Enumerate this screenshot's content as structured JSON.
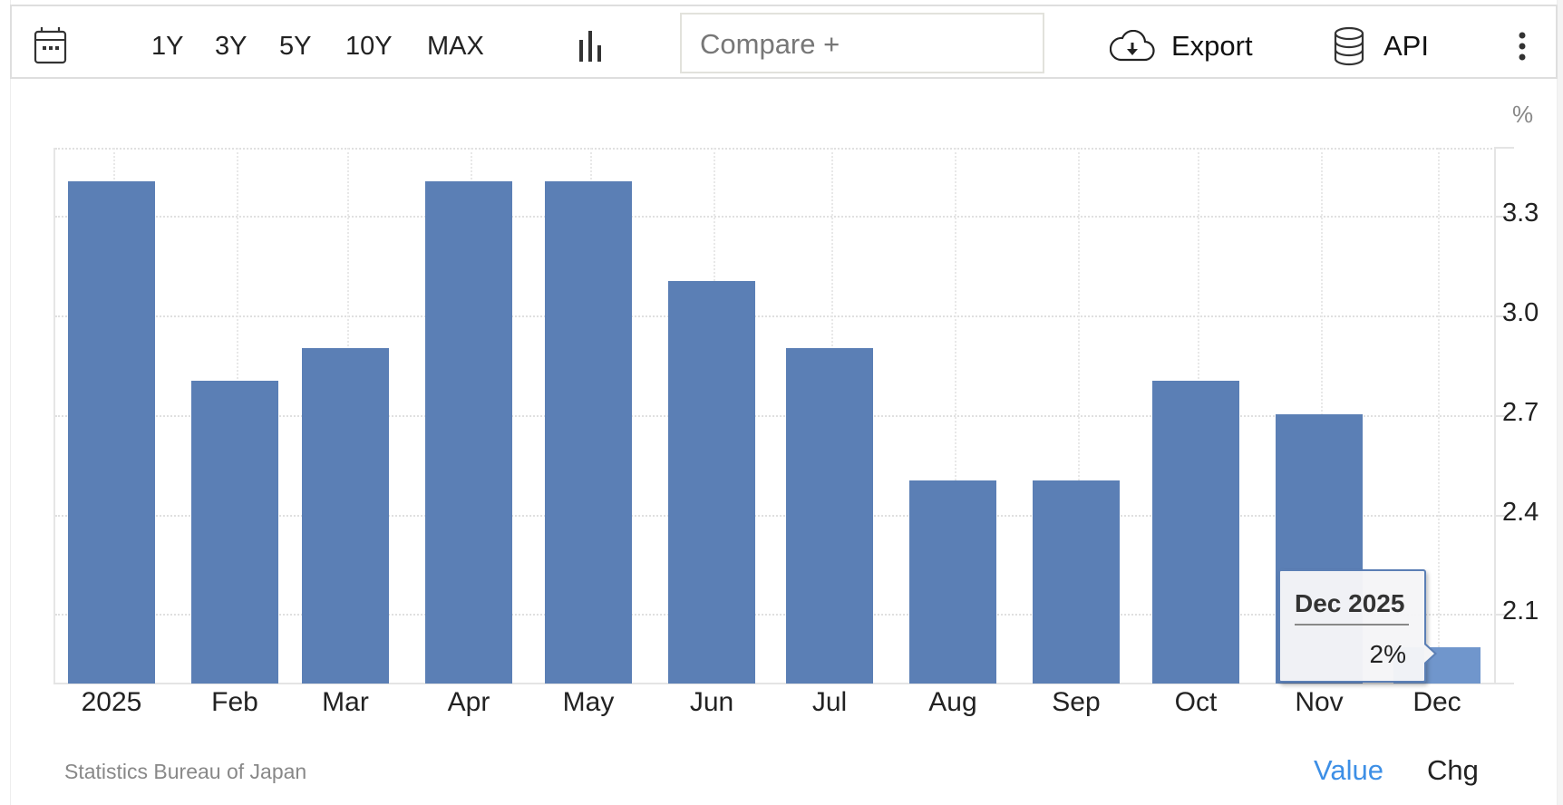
{
  "toolbar": {
    "icons": {
      "calendar": "calendar-icon",
      "chart_type": "bar-chart-icon",
      "export": "cloud-download-icon",
      "api": "database-icon",
      "more": "more-vertical-icon"
    },
    "ranges": [
      {
        "label": "1Y"
      },
      {
        "label": "3Y"
      },
      {
        "label": "5Y"
      },
      {
        "label": "10Y"
      },
      {
        "label": "MAX"
      }
    ],
    "compare_placeholder": "Compare +",
    "export_label": "Export",
    "api_label": "API"
  },
  "chart": {
    "unit": "%",
    "bar_color": "#5b7fb5",
    "active_bar_color": "#7096cc",
    "tooltip": {
      "title": "Dec 2025",
      "value": "2%"
    }
  },
  "footer": {
    "source": "Statistics Bureau of Japan",
    "value_label": "Value",
    "chg_label": "Chg",
    "active_color": "#3d8fe6"
  },
  "chart_data": {
    "type": "bar",
    "title": "",
    "xlabel": "",
    "ylabel": "%",
    "categories": [
      "2025",
      "Feb",
      "Mar",
      "Apr",
      "May",
      "Jun",
      "Jul",
      "Aug",
      "Sep",
      "Oct",
      "Nov",
      "Dec"
    ],
    "values": [
      3.4,
      2.8,
      2.9,
      3.4,
      3.4,
      3.1,
      2.9,
      2.5,
      2.5,
      2.8,
      2.7,
      2.0
    ],
    "y_ticks": [
      "3.3",
      "3.0",
      "2.7",
      "2.4",
      "2.1"
    ],
    "ylim": [
      1.89,
      3.5
    ],
    "grid": true,
    "y_axis_position": "right",
    "highlighted": {
      "category": "Dec",
      "label": "Dec 2025",
      "value": "2%"
    }
  }
}
